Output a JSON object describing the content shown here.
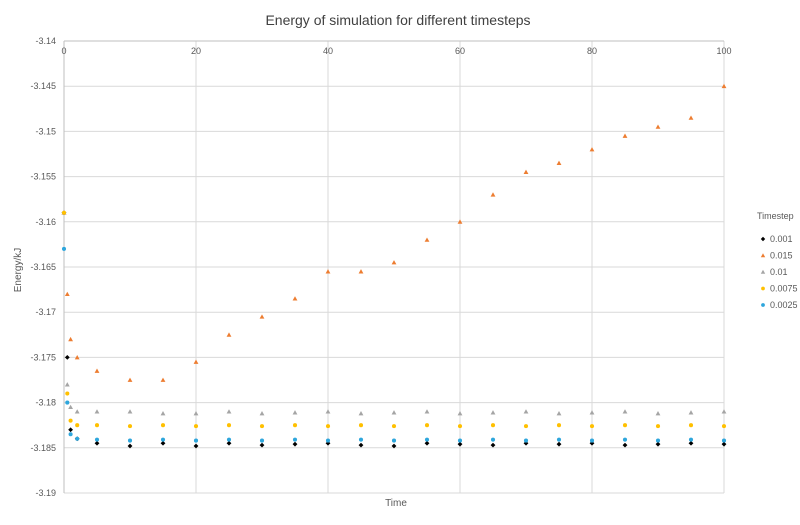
{
  "chart_data": {
    "type": "scatter",
    "title": "Energy of simulation for different timesteps",
    "xlabel": "Time",
    "ylabel": "Energy/kJ",
    "xlim": [
      0,
      100
    ],
    "ylim": [
      -3.19,
      -3.14
    ],
    "xticks": [
      "0",
      "20",
      "40",
      "60",
      "80",
      "100"
    ],
    "yticks": [
      "-3.14",
      "-3.145",
      "-3.15",
      "-3.155",
      "-3.16",
      "-3.165",
      "-3.17",
      "-3.175",
      "-3.18",
      "-3.185",
      "-3.19"
    ],
    "x_axis_position": "top",
    "grid": true,
    "legend_title": "Timestep",
    "legend_position": "right",
    "series": [
      {
        "name": "0.001",
        "color": "#000000",
        "marker": "diamond",
        "x": [
          0,
          0.5,
          1,
          2,
          5,
          10,
          15,
          20,
          25,
          30,
          35,
          40,
          45,
          50,
          55,
          60,
          65,
          70,
          75,
          80,
          85,
          90,
          95,
          100
        ],
        "y": [
          -3.159,
          -3.175,
          -3.183,
          -3.184,
          -3.1845,
          -3.1848,
          -3.1845,
          -3.1848,
          -3.1845,
          -3.1847,
          -3.1846,
          -3.1845,
          -3.1847,
          -3.1848,
          -3.1845,
          -3.1846,
          -3.1847,
          -3.1845,
          -3.1846,
          -3.1845,
          -3.1847,
          -3.1846,
          -3.1845,
          -3.1846
        ]
      },
      {
        "name": "0.015",
        "color": "#ED7D31",
        "marker": "triangle",
        "x": [
          0,
          0.5,
          1,
          2,
          5,
          10,
          15,
          20,
          25,
          30,
          35,
          40,
          45,
          50,
          55,
          60,
          65,
          70,
          75,
          80,
          85,
          90,
          95,
          100
        ],
        "y": [
          -3.159,
          -3.168,
          -3.173,
          -3.175,
          -3.1765,
          -3.1775,
          -3.1775,
          -3.1755,
          -3.1725,
          -3.1705,
          -3.1685,
          -3.1655,
          -3.1655,
          -3.1645,
          -3.162,
          -3.16,
          -3.157,
          -3.1545,
          -3.1535,
          -3.152,
          -3.1505,
          -3.1495,
          -3.1485,
          -3.145
        ]
      },
      {
        "name": "0.01",
        "color": "#A5A5A5",
        "marker": "triangle",
        "x": [
          0,
          0.5,
          1,
          2,
          5,
          10,
          15,
          20,
          25,
          30,
          35,
          40,
          45,
          50,
          55,
          60,
          65,
          70,
          75,
          80,
          85,
          90,
          95,
          100
        ],
        "y": [
          -3.159,
          -3.178,
          -3.1805,
          -3.181,
          -3.181,
          -3.181,
          -3.1812,
          -3.1812,
          -3.181,
          -3.1812,
          -3.1811,
          -3.181,
          -3.1812,
          -3.1811,
          -3.181,
          -3.1812,
          -3.1811,
          -3.181,
          -3.1812,
          -3.1811,
          -3.181,
          -3.1812,
          -3.1811,
          -3.181
        ]
      },
      {
        "name": "0.0075",
        "color": "#FFC000",
        "marker": "circle",
        "x": [
          0,
          0.5,
          1,
          2,
          5,
          10,
          15,
          20,
          25,
          30,
          35,
          40,
          45,
          50,
          55,
          60,
          65,
          70,
          75,
          80,
          85,
          90,
          95,
          100
        ],
        "y": [
          -3.159,
          -3.179,
          -3.182,
          -3.1825,
          -3.1825,
          -3.1826,
          -3.1825,
          -3.1826,
          -3.1825,
          -3.1826,
          -3.1825,
          -3.1826,
          -3.1825,
          -3.1826,
          -3.1825,
          -3.1826,
          -3.1825,
          -3.1826,
          -3.1825,
          -3.1826,
          -3.1825,
          -3.1826,
          -3.1825,
          -3.1826
        ]
      },
      {
        "name": "0.0025",
        "color": "#2EA6DC",
        "marker": "circle",
        "x": [
          0,
          0.5,
          1,
          2,
          5,
          10,
          15,
          20,
          25,
          30,
          35,
          40,
          45,
          50,
          55,
          60,
          65,
          70,
          75,
          80,
          85,
          90,
          95,
          100
        ],
        "y": [
          -3.163,
          -3.18,
          -3.1835,
          -3.184,
          -3.1841,
          -3.1842,
          -3.1841,
          -3.1842,
          -3.1841,
          -3.1842,
          -3.1841,
          -3.1842,
          -3.1841,
          -3.1842,
          -3.1841,
          -3.1842,
          -3.1841,
          -3.1842,
          -3.1841,
          -3.1842,
          -3.1841,
          -3.1842,
          -3.1841,
          -3.1842
        ]
      }
    ]
  }
}
